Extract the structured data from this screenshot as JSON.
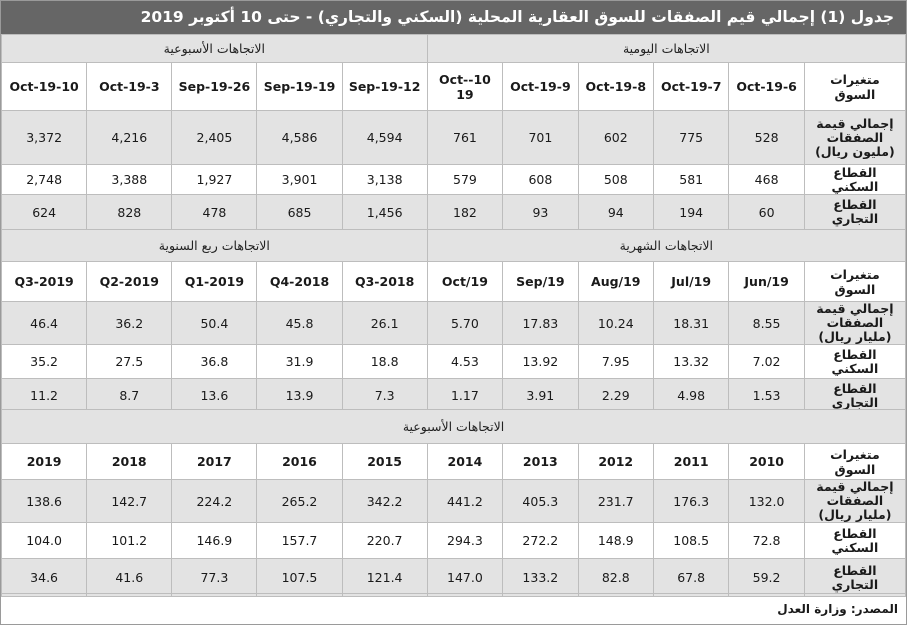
{
  "title": "جدول (1) إجمالي قيم الصفقات للسوق العقارية المحلية (السكني والتجاري) - حتى 10 أكتوبر 2019",
  "block1": {
    "right_section": "الاتجاهات اليومية",
    "left_section": "الاتجاهات الأسبوعية",
    "header_label": "متغيرات السوق",
    "columns": [
      "6-Oct-19",
      "7-Oct-19",
      "8-Oct-19",
      "9-Oct-19",
      "10-Oct-19",
      "12-Sep-19",
      "19-Sep-19",
      "26-Sep-19",
      "3-Oct-19",
      "10-Oct-19"
    ],
    "rows": [
      {
        "label": "إجمالي قيمة الصفقات (مليون ريال)",
        "values": [
          "528",
          "775",
          "602",
          "701",
          "761",
          "4,594",
          "4,586",
          "2,405",
          "4,216",
          "3,372"
        ]
      },
      {
        "label": "القطاع السكني",
        "values": [
          "468",
          "581",
          "508",
          "608",
          "579",
          "3,138",
          "3,901",
          "1,927",
          "3,388",
          "2,748"
        ]
      },
      {
        "label": "القطاع التجاري",
        "values": [
          "60",
          "194",
          "94",
          "93",
          "182",
          "1,456",
          "685",
          "478",
          "828",
          "624"
        ]
      }
    ]
  },
  "block2": {
    "right_section": "الاتجاهات الشهرية",
    "left_section": "الاتجاهات ربع السنوية",
    "header_label": "متغيرات السوق",
    "columns": [
      "Jun/19",
      "Jul/19",
      "Aug/19",
      "Sep/19",
      "Oct/19",
      "2018-Q3",
      "2018-Q4",
      "2019-Q1",
      "2019-Q2",
      "2019-Q3"
    ],
    "rows": [
      {
        "label": "إجمالي قيمة الصفقات (مليار ريال)",
        "values": [
          "8.55",
          "18.31",
          "10.24",
          "17.83",
          "5.70",
          "26.1",
          "45.8",
          "50.4",
          "36.2",
          "46.4"
        ]
      },
      {
        "label": "القطاع السكني",
        "values": [
          "7.02",
          "13.32",
          "7.95",
          "13.92",
          "4.53",
          "18.8",
          "31.9",
          "36.8",
          "27.5",
          "35.2"
        ]
      },
      {
        "label": "القطاع التجاري",
        "values": [
          "1.53",
          "4.98",
          "2.29",
          "3.91",
          "1.17",
          "7.3",
          "13.9",
          "13.6",
          "8.7",
          "11.2"
        ]
      }
    ]
  },
  "block3": {
    "section": "الاتجاهات الأسبوعية",
    "header_label": "متغيرات السوق",
    "columns": [
      "2010",
      "2011",
      "2012",
      "2013",
      "2014",
      "2015",
      "2016",
      "2017",
      "2018",
      "2019"
    ],
    "rows": [
      {
        "label": "إجمالي قيمة الصفقات (مليار ريال)",
        "values": [
          "132.0",
          "176.3",
          "231.7",
          "405.3",
          "441.2",
          "342.2",
          "265.2",
          "224.2",
          "142.7",
          "138.6"
        ]
      },
      {
        "label": "القطاع السكني",
        "values": [
          "72.8",
          "108.5",
          "148.9",
          "272.2",
          "294.3",
          "220.7",
          "157.7",
          "146.9",
          "101.2",
          "104.0"
        ]
      },
      {
        "label": "القطاع التجاري",
        "values": [
          "59.2",
          "67.8",
          "82.8",
          "133.2",
          "147.0",
          "121.4",
          "107.5",
          "77.3",
          "41.6",
          "34.6"
        ]
      }
    ]
  },
  "footer": "المصدر: وزارة العدل"
}
